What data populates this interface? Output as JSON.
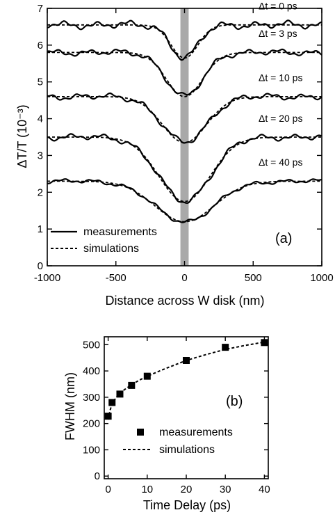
{
  "chart_data": [
    {
      "panel": "(a)",
      "type": "line",
      "xlabel": "Distance across W disk (nm)",
      "ylabel": "ΔT/T (10⁻³)",
      "xlim": [
        -1000,
        1000
      ],
      "ylim": [
        0,
        7
      ],
      "xticks": [
        -1000,
        -500,
        0,
        500,
        1000
      ],
      "yticks": [
        0,
        1,
        2,
        3,
        4,
        5,
        6,
        7
      ],
      "grid": false,
      "legend_position": "bottom-left",
      "legend": {
        "measurements": "measurements",
        "simulations": "simulations"
      },
      "shaded_band": {
        "x_center": 0,
        "width": 60,
        "color": "#9a9a9a"
      },
      "series": [
        {
          "label": "Δt = 0 ps",
          "baseline": 6.55,
          "depth": 0.9,
          "fwhm": 230,
          "noise": 0.12
        },
        {
          "label": "Δt = 3 ps",
          "baseline": 5.8,
          "depth": 1.2,
          "fwhm": 310,
          "noise": 0.1
        },
        {
          "label": "Δt = 10 ps",
          "baseline": 4.6,
          "depth": 1.25,
          "fwhm": 380,
          "noise": 0.1
        },
        {
          "label": "Δt = 20 ps",
          "baseline": 3.5,
          "depth": 1.75,
          "fwhm": 440,
          "noise": 0.1
        },
        {
          "label": "Δt = 40 ps",
          "baseline": 2.3,
          "depth": 1.1,
          "fwhm": 510,
          "noise": 0.07
        }
      ]
    },
    {
      "panel": "(b)",
      "type": "scatter",
      "xlabel": "Time Delay (ps)",
      "ylabel": "FWHM (nm)",
      "xlim": [
        -1,
        41
      ],
      "ylim": [
        -10,
        530
      ],
      "xticks": [
        0,
        10,
        20,
        30,
        40
      ],
      "yticks": [
        0,
        100,
        200,
        300,
        400,
        500
      ],
      "grid": false,
      "legend_position": "bottom-right",
      "legend": {
        "measurements": "measurements",
        "simulations": "simulations"
      },
      "measurements": {
        "x": [
          0,
          1,
          3,
          6,
          10,
          20,
          30,
          40
        ],
        "y": [
          228,
          280,
          312,
          345,
          380,
          440,
          490,
          508
        ]
      },
      "simulation_curve": {
        "x": [
          0,
          0.5,
          1,
          2,
          3,
          4,
          6,
          8,
          10,
          14,
          20,
          25,
          30,
          35,
          40
        ],
        "y": [
          215,
          250,
          275,
          298,
          315,
          327,
          348,
          365,
          380,
          405,
          440,
          462,
          482,
          497,
          510
        ]
      }
    }
  ]
}
